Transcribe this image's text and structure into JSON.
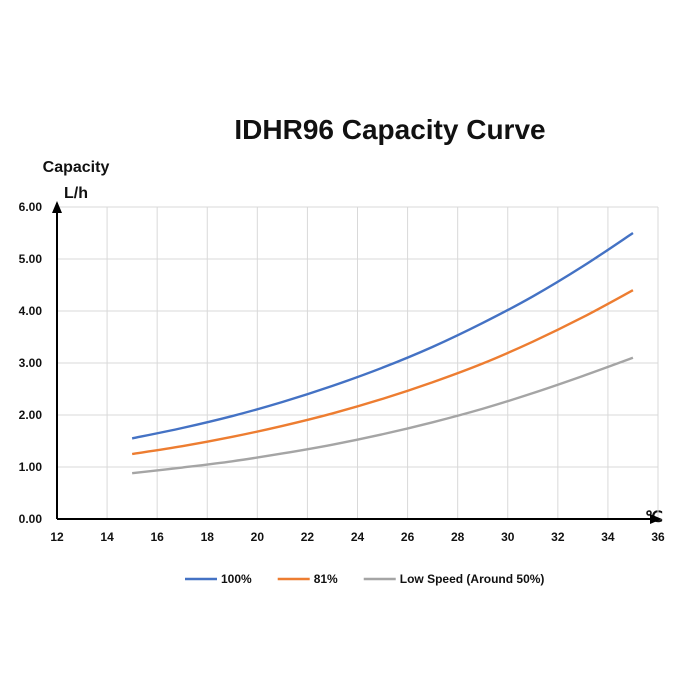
{
  "chart_data": {
    "type": "line",
    "title": "IDHR96  Capacity Curve",
    "ylabel": "Capacity",
    "yunit": "L/h",
    "xunit": "℃",
    "xlim": [
      12,
      36
    ],
    "ylim": [
      0,
      6
    ],
    "xticks": [
      "12",
      "14",
      "16",
      "18",
      "20",
      "22",
      "24",
      "26",
      "28",
      "30",
      "32",
      "34",
      "36"
    ],
    "yticks": [
      "0.00",
      "1.00",
      "2.00",
      "3.00",
      "4.00",
      "5.00",
      "6.00"
    ],
    "grid": true,
    "legend_position": "bottom",
    "x": [
      15,
      17,
      19,
      21,
      23,
      25,
      27,
      29,
      31,
      33,
      35
    ],
    "series": [
      {
        "name": "100%",
        "color": "#4472c4",
        "values": [
          1.55,
          1.75,
          1.98,
          2.25,
          2.56,
          2.91,
          3.31,
          3.77,
          4.28,
          4.86,
          5.5
        ]
      },
      {
        "name": "81%",
        "color": "#ed7d31",
        "values": [
          1.25,
          1.4,
          1.58,
          1.79,
          2.03,
          2.31,
          2.63,
          2.99,
          3.41,
          3.88,
          4.4
        ]
      },
      {
        "name": "Low Speed (Around 50%)",
        "color": "#a5a5a5",
        "values": [
          0.88,
          0.99,
          1.11,
          1.26,
          1.43,
          1.63,
          1.86,
          2.12,
          2.42,
          2.75,
          3.1
        ]
      }
    ]
  }
}
